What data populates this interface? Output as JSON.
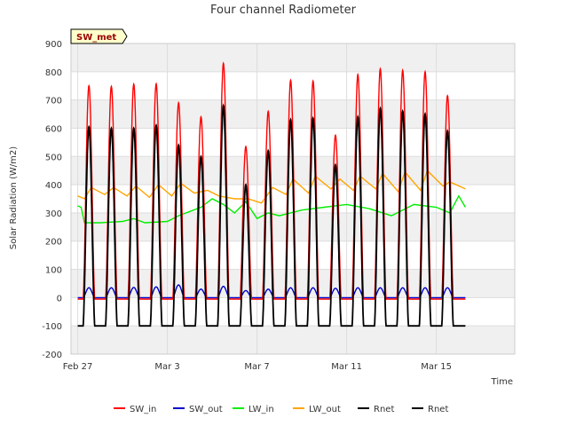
{
  "chart_data": {
    "type": "line",
    "title": "Four channel Radiometer",
    "xlabel": "Time",
    "ylabel": "Solar Radiation (W/m2)",
    "ylim": [
      -200,
      900
    ],
    "yticks": [
      -200,
      -100,
      0,
      100,
      200,
      300,
      400,
      500,
      600,
      700,
      800,
      900
    ],
    "xlim_days": [
      -0.3,
      19.5
    ],
    "xticks": [
      {
        "day": 0,
        "label": "Feb 27"
      },
      {
        "day": 4,
        "label": "Mar 3"
      },
      {
        "day": 8,
        "label": "Mar 7"
      },
      {
        "day": 12,
        "label": "Mar 11"
      },
      {
        "day": 16,
        "label": "Mar 15"
      }
    ],
    "site_tag": "SW_met",
    "band_fill": "#f0f0f0",
    "diurnal_peak_hour": 0.5,
    "diurnal_halfwidth_days": 0.26,
    "series": [
      {
        "name": "SW_in",
        "color": "#ff0000",
        "kind": "daily_peak",
        "night": -5,
        "peaks": [
          {
            "day": 0.5,
            "value": 750
          },
          {
            "day": 1.5,
            "value": 748
          },
          {
            "day": 2.5,
            "value": 756
          },
          {
            "day": 3.5,
            "value": 757
          },
          {
            "day": 4.5,
            "value": 690
          },
          {
            "day": 5.5,
            "value": 640
          },
          {
            "day": 6.5,
            "value": 830
          },
          {
            "day": 7.5,
            "value": 535
          },
          {
            "day": 8.5,
            "value": 660
          },
          {
            "day": 9.5,
            "value": 770
          },
          {
            "day": 10.5,
            "value": 767
          },
          {
            "day": 11.5,
            "value": 575
          },
          {
            "day": 12.5,
            "value": 790
          },
          {
            "day": 13.5,
            "value": 810
          },
          {
            "day": 14.5,
            "value": 805
          },
          {
            "day": 15.5,
            "value": 800
          },
          {
            "day": 16.5,
            "value": 715
          }
        ]
      },
      {
        "name": "SW_out",
        "color": "#0000cc",
        "kind": "daily_peak",
        "night": 0,
        "peaks": [
          {
            "day": 0.5,
            "value": 35
          },
          {
            "day": 1.5,
            "value": 35
          },
          {
            "day": 2.5,
            "value": 36
          },
          {
            "day": 3.5,
            "value": 38
          },
          {
            "day": 4.5,
            "value": 45
          },
          {
            "day": 5.5,
            "value": 30
          },
          {
            "day": 6.5,
            "value": 40
          },
          {
            "day": 7.5,
            "value": 25
          },
          {
            "day": 8.5,
            "value": 30
          },
          {
            "day": 9.5,
            "value": 35
          },
          {
            "day": 10.5,
            "value": 35
          },
          {
            "day": 11.5,
            "value": 33
          },
          {
            "day": 12.5,
            "value": 35
          },
          {
            "day": 13.5,
            "value": 35
          },
          {
            "day": 14.5,
            "value": 35
          },
          {
            "day": 15.5,
            "value": 35
          },
          {
            "day": 16.5,
            "value": 35
          }
        ]
      },
      {
        "name": "LW_in",
        "color": "#00ee00",
        "kind": "profile",
        "points": [
          {
            "day": 0.0,
            "value": 325
          },
          {
            "day": 0.15,
            "value": 320
          },
          {
            "day": 0.3,
            "value": 265
          },
          {
            "day": 1.0,
            "value": 265
          },
          {
            "day": 2.0,
            "value": 270
          },
          {
            "day": 2.5,
            "value": 280
          },
          {
            "day": 3.0,
            "value": 265
          },
          {
            "day": 4.0,
            "value": 270
          },
          {
            "day": 4.5,
            "value": 290
          },
          {
            "day": 5.0,
            "value": 305
          },
          {
            "day": 5.5,
            "value": 320
          },
          {
            "day": 6.0,
            "value": 350
          },
          {
            "day": 6.5,
            "value": 330
          },
          {
            "day": 7.0,
            "value": 300
          },
          {
            "day": 7.5,
            "value": 340
          },
          {
            "day": 8.0,
            "value": 280
          },
          {
            "day": 8.5,
            "value": 300
          },
          {
            "day": 9.0,
            "value": 290
          },
          {
            "day": 10.0,
            "value": 310
          },
          {
            "day": 11.0,
            "value": 320
          },
          {
            "day": 12.0,
            "value": 330
          },
          {
            "day": 13.0,
            "value": 315
          },
          {
            "day": 14.0,
            "value": 290
          },
          {
            "day": 15.0,
            "value": 330
          },
          {
            "day": 16.0,
            "value": 320
          },
          {
            "day": 16.6,
            "value": 300
          },
          {
            "day": 17.0,
            "value": 360
          },
          {
            "day": 17.3,
            "value": 320
          }
        ]
      },
      {
        "name": "LW_out",
        "color": "#ffa500",
        "kind": "profile",
        "points": [
          {
            "day": 0.0,
            "value": 360
          },
          {
            "day": 0.3,
            "value": 350
          },
          {
            "day": 0.6,
            "value": 390
          },
          {
            "day": 1.2,
            "value": 365
          },
          {
            "day": 1.6,
            "value": 390
          },
          {
            "day": 2.2,
            "value": 360
          },
          {
            "day": 2.6,
            "value": 395
          },
          {
            "day": 3.2,
            "value": 355
          },
          {
            "day": 3.6,
            "value": 400
          },
          {
            "day": 4.2,
            "value": 360
          },
          {
            "day": 4.6,
            "value": 405
          },
          {
            "day": 5.2,
            "value": 370
          },
          {
            "day": 5.8,
            "value": 380
          },
          {
            "day": 6.3,
            "value": 360
          },
          {
            "day": 7.0,
            "value": 350
          },
          {
            "day": 7.6,
            "value": 350
          },
          {
            "day": 8.2,
            "value": 335
          },
          {
            "day": 8.7,
            "value": 390
          },
          {
            "day": 9.3,
            "value": 365
          },
          {
            "day": 9.6,
            "value": 420
          },
          {
            "day": 10.3,
            "value": 370
          },
          {
            "day": 10.6,
            "value": 430
          },
          {
            "day": 11.3,
            "value": 385
          },
          {
            "day": 11.7,
            "value": 420
          },
          {
            "day": 12.3,
            "value": 380
          },
          {
            "day": 12.6,
            "value": 430
          },
          {
            "day": 13.3,
            "value": 385
          },
          {
            "day": 13.6,
            "value": 440
          },
          {
            "day": 14.3,
            "value": 375
          },
          {
            "day": 14.6,
            "value": 445
          },
          {
            "day": 15.3,
            "value": 380
          },
          {
            "day": 15.6,
            "value": 450
          },
          {
            "day": 16.3,
            "value": 395
          },
          {
            "day": 16.6,
            "value": 410
          },
          {
            "day": 17.3,
            "value": 385
          }
        ]
      },
      {
        "name": "Rnet",
        "color": "#000000",
        "kind": "daily_peak",
        "night": -100,
        "peaks": [
          {
            "day": 0.5,
            "value": 605
          },
          {
            "day": 1.5,
            "value": 600
          },
          {
            "day": 2.5,
            "value": 600
          },
          {
            "day": 3.5,
            "value": 610
          },
          {
            "day": 4.5,
            "value": 540
          },
          {
            "day": 5.5,
            "value": 500
          },
          {
            "day": 6.5,
            "value": 680
          },
          {
            "day": 7.5,
            "value": 400
          },
          {
            "day": 8.5,
            "value": 520
          },
          {
            "day": 9.5,
            "value": 630
          },
          {
            "day": 10.5,
            "value": 635
          },
          {
            "day": 11.5,
            "value": 470
          },
          {
            "day": 12.5,
            "value": 640
          },
          {
            "day": 13.5,
            "value": 670
          },
          {
            "day": 14.5,
            "value": 660
          },
          {
            "day": 15.5,
            "value": 650
          },
          {
            "day": 16.5,
            "value": 590
          }
        ]
      },
      {
        "name": "Rnet",
        "color": "#000000",
        "kind": "legend_only"
      }
    ]
  }
}
